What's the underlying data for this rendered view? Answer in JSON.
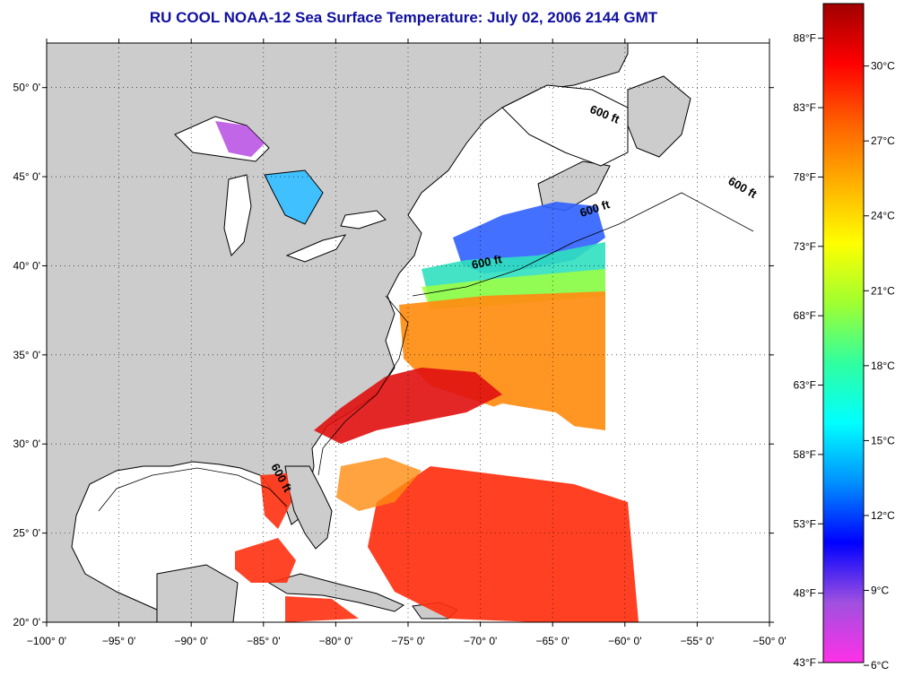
{
  "title": "RU COOL  NOAA-12  Sea Surface Temperature:  July 02, 2006 2144 GMT",
  "axes": {
    "lat_labels": [
      "50° 0'",
      "45° 0'",
      "40° 0'",
      "35° 0'",
      "30° 0'",
      "25° 0'",
      "20° 0'"
    ],
    "lat_values": [
      50,
      45,
      40,
      35,
      30,
      25,
      20
    ],
    "lon_labels": [
      "−100° 0'",
      "−95° 0'",
      "−90° 0'",
      "−85° 0'",
      "−80° 0'",
      "−75° 0'",
      "−70° 0'",
      "−65° 0'",
      "−60° 0'",
      "−55° 0'",
      "−50° 0'"
    ],
    "lon_values": [
      -100,
      -95,
      -90,
      -85,
      -80,
      -75,
      -70,
      -65,
      -60,
      -55,
      -50
    ],
    "lat_range": [
      20,
      52.5
    ],
    "lon_range": [
      -100,
      -50
    ],
    "grid": true
  },
  "depth_contours": [
    {
      "label": "600 ft",
      "lon": -61.5,
      "lat": 48.3
    },
    {
      "label": "600 ft",
      "lon": -52.0,
      "lat": 44.2
    },
    {
      "label": "600 ft",
      "lon": -62.0,
      "lat": 43.0
    },
    {
      "label": "600 ft",
      "lon": -69.5,
      "lat": 40.0
    },
    {
      "label": "600 ft",
      "lon": -84.0,
      "lat": 28.0
    }
  ],
  "colorbar": {
    "fahrenheit_labels": [
      "88°F",
      "83°F",
      "78°F",
      "73°F",
      "68°F",
      "63°F",
      "58°F",
      "53°F",
      "48°F",
      "43°F"
    ],
    "fahrenheit_values": [
      88,
      83,
      78,
      73,
      68,
      63,
      58,
      53,
      48,
      43
    ],
    "celsius_labels": [
      "30°C",
      "27°C",
      "24°C",
      "21°C",
      "18°C",
      "15°C",
      "12°C",
      "9°C",
      "6°C"
    ],
    "celsius_values": [
      30,
      27,
      24,
      21,
      18,
      15,
      12,
      9,
      6
    ],
    "range_f": [
      43,
      90.5
    ],
    "colors": [
      "#ff30e8",
      "#a050e0",
      "#0000ff",
      "#0090ff",
      "#00ffff",
      "#30ffa0",
      "#a0ff30",
      "#ffff00",
      "#ffb000",
      "#ff6000",
      "#ff0000",
      "#a00000"
    ]
  },
  "colors": {
    "land": "#cccccc",
    "water_no_data": "#ffffff",
    "coast": "#000000",
    "title": "#1010a0"
  }
}
